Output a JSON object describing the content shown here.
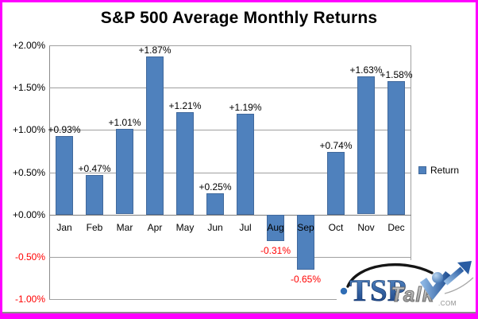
{
  "window": {
    "background": "#FFFFFF",
    "border_color": "#FF00FF"
  },
  "chart_data": {
    "type": "bar",
    "title": "S&P 500 Average Monthly Returns",
    "categories": [
      "Jan",
      "Feb",
      "Mar",
      "Apr",
      "May",
      "Jun",
      "Jul",
      "Aug",
      "Sep",
      "Oct",
      "Nov",
      "Dec"
    ],
    "series": [
      {
        "name": "Return",
        "values": [
          0.93,
          0.47,
          1.01,
          1.87,
          1.21,
          0.25,
          1.19,
          -0.31,
          -0.65,
          0.74,
          1.63,
          1.58
        ],
        "labels": [
          "+0.93%",
          "+0.47%",
          "+1.01%",
          "+1.87%",
          "+1.21%",
          "+0.25%",
          "+1.19%",
          "-0.31%",
          "-0.65%",
          "+0.74%",
          "+1.63%",
          "+1.58%"
        ]
      }
    ],
    "ylim": [
      -1.0,
      2.0
    ],
    "yticks": [
      {
        "label": "+2.00%",
        "value": 2.0,
        "color": "#000000"
      },
      {
        "label": "+1.50%",
        "value": 1.5,
        "color": "#000000"
      },
      {
        "label": "+1.00%",
        "value": 1.0,
        "color": "#000000"
      },
      {
        "label": "+0.50%",
        "value": 0.5,
        "color": "#000000"
      },
      {
        "label": "+0.00%",
        "value": 0.0,
        "color": "#000000"
      },
      {
        "label": "-0.50%",
        "value": -0.5,
        "color": "#FF0000"
      },
      {
        "label": "-1.00%",
        "value": -1.0,
        "color": "#FF0000"
      }
    ],
    "grid": true,
    "legend_position": "right",
    "styles": {
      "bar_fill": "#4F81BD",
      "bar_border": "#41699C",
      "grid_color": "#A0A0A0",
      "positive_label_color": "#000000",
      "negative_label_color": "#FF0000"
    }
  },
  "legend": {
    "label": "Return",
    "swatch_color": "#4F81BD"
  },
  "watermark": {
    "tsp": "TSP",
    "talk": "Talk",
    "com": ".COM"
  }
}
